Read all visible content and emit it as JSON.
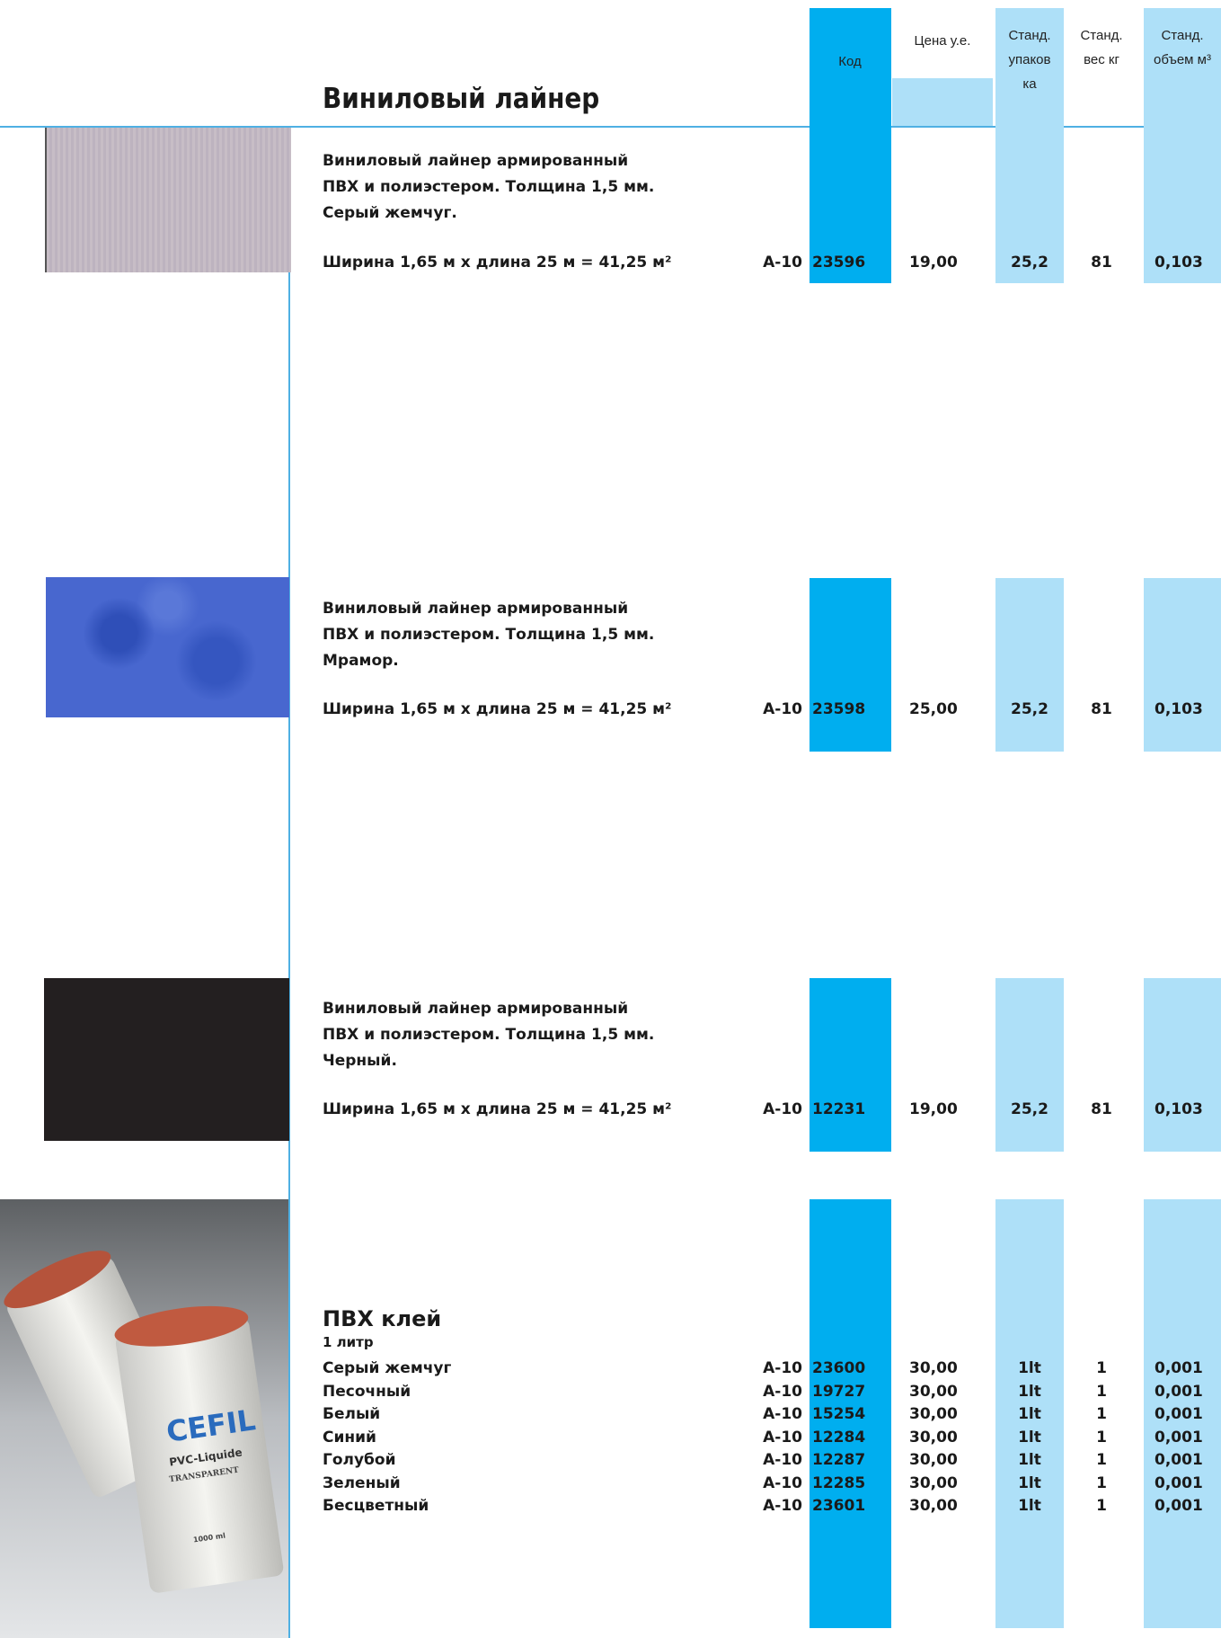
{
  "header": {
    "title": "Виниловый лайнер",
    "columns": [
      {
        "lines": [
          "Код"
        ]
      },
      {
        "lines": [
          "Цена у.е."
        ]
      },
      {
        "lines": [
          "Станд.",
          "упаков",
          "ка"
        ]
      },
      {
        "lines": [
          "Станд.",
          "вес кг"
        ]
      },
      {
        "lines": [
          "Станд.",
          "объем м³"
        ]
      }
    ]
  },
  "liners": [
    {
      "description": [
        "Виниловый лайнер армированный",
        "ПВХ и полиэстером. Толщина 1,5 мм.",
        "Серый жемчуг."
      ],
      "size": "Ширина 1,65 м х длина 25 м = 41,25 м²",
      "row": [
        "А-10",
        "23596",
        "19,00",
        "25,2",
        "81",
        "0,103"
      ]
    },
    {
      "description": [
        "Виниловый лайнер армированный",
        "ПВХ и полиэстером. Толщина 1,5 мм.",
        "Мрамор."
      ],
      "size": "Ширина 1,65 м х длина 25 м = 41,25 м²",
      "row": [
        "А-10",
        "23598",
        "25,00",
        "25,2",
        "81",
        "0,103"
      ]
    },
    {
      "description": [
        "Виниловый лайнер армированный",
        "ПВХ и полиэстером. Толщина 1,5 мм.",
        "Черный."
      ],
      "size": "Ширина 1,65 м х длина 25 м = 41,25 м²",
      "row": [
        "А-10",
        "12231",
        "19,00",
        "25,2",
        "81",
        "0,103"
      ]
    }
  ],
  "glue": {
    "title": "ПВХ клей",
    "volume": "1 литр",
    "image_labels": [
      "CEFIL",
      "PVC-Liquide",
      "TRANSPARENT",
      "1000 ml"
    ],
    "rows": [
      {
        "name": "Серый жемчуг",
        "cells": [
          "А-10",
          "23600",
          "30,00",
          "1lt",
          "1",
          "0,001"
        ]
      },
      {
        "name": "Песочный",
        "cells": [
          "А-10",
          "19727",
          "30,00",
          "1lt",
          "1",
          "0,001"
        ]
      },
      {
        "name": "Белый",
        "cells": [
          "А-10",
          "15254",
          "30,00",
          "1lt",
          "1",
          "0,001"
        ]
      },
      {
        "name": "Синий",
        "cells": [
          "А-10",
          "12284",
          "30,00",
          "1lt",
          "1",
          "0,001"
        ]
      },
      {
        "name": "Голубой",
        "cells": [
          "А-10",
          "12287",
          "30,00",
          "1lt",
          "1",
          "0,001"
        ]
      },
      {
        "name": "Зеленый",
        "cells": [
          "А-10",
          "12285",
          "30,00",
          "1lt",
          "1",
          "0,001"
        ]
      },
      {
        "name": "Бесцветный",
        "cells": [
          "А-10",
          "23601",
          "30,00",
          "1lt",
          "1",
          "0,001"
        ]
      }
    ]
  }
}
